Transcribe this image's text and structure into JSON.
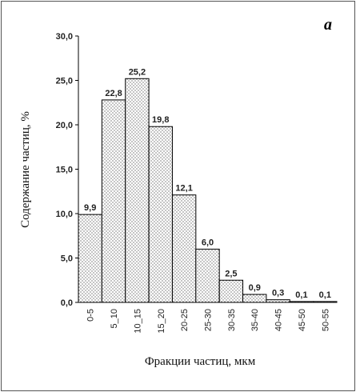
{
  "chart_data": {
    "type": "bar",
    "panel_label": "a",
    "categories": [
      "0-5",
      "5_10",
      "10_15",
      "15_20",
      "20-25",
      "25-30",
      "30-35",
      "35-40",
      "40-45",
      "45-50",
      "50-55"
    ],
    "values": [
      9.9,
      22.8,
      25.2,
      19.8,
      12.1,
      6.0,
      2.5,
      0.9,
      0.3,
      0.1,
      0.1
    ],
    "data_labels": [
      "9,9",
      "22,8",
      "25,2",
      "19,8",
      "12,1",
      "6,0",
      "2,5",
      "0,9",
      "0,3",
      "0,1",
      "0,1"
    ],
    "xlabel": "Фракции частиц, мкм",
    "ylabel": "Содержание частиц, %",
    "ylim": [
      0,
      30
    ],
    "y_ticks": [
      0,
      5,
      10,
      15,
      20,
      25,
      30
    ],
    "y_tick_labels": [
      "0,0",
      "5,0",
      "10,0",
      "15,0",
      "20,0",
      "25,0",
      "30,0"
    ],
    "bar_fill": "dotted-pattern",
    "grid": false,
    "legend": "none",
    "colors": {
      "bar_fill": "#ffffff",
      "bar_dots": "#555555",
      "bar_stroke": "#000000",
      "axis": "#000000",
      "text": "#222222"
    }
  }
}
